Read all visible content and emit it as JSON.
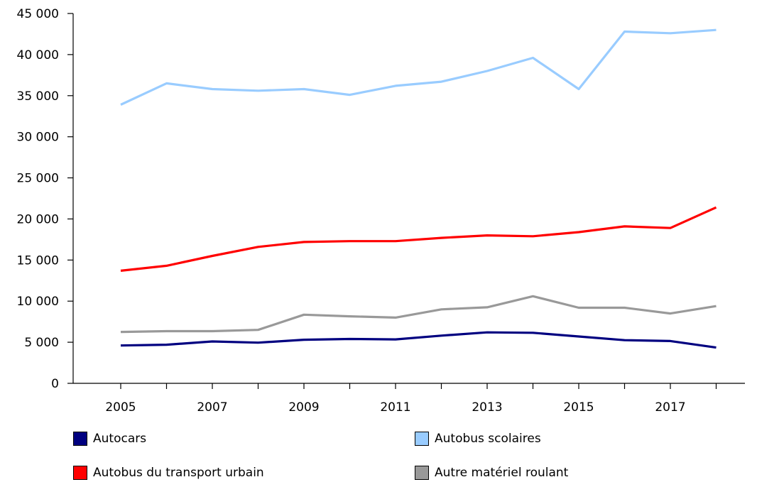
{
  "chart_data": {
    "type": "line",
    "title": "",
    "xlabel": "",
    "ylabel": "",
    "x": [
      2005,
      2006,
      2007,
      2008,
      2009,
      2010,
      2011,
      2012,
      2013,
      2014,
      2015,
      2016,
      2017,
      2018
    ],
    "x_tick_labels": [
      "2005",
      "2007",
      "2009",
      "2011",
      "2013",
      "2015",
      "2017"
    ],
    "x_tick_values": [
      2005,
      2007,
      2009,
      2011,
      2013,
      2015,
      2017
    ],
    "ylim": [
      0,
      45000
    ],
    "y_ticks": [
      0,
      5000,
      10000,
      15000,
      20000,
      25000,
      30000,
      35000,
      40000,
      45000
    ],
    "y_tick_labels": [
      "0",
      "5 000",
      "10 000",
      "15 000",
      "20 000",
      "25 000",
      "30 000",
      "35 000",
      "40 000",
      "45 000"
    ],
    "grid": false,
    "legend_position": "bottom",
    "series": [
      {
        "name": "Autocars",
        "color": "#000080",
        "values": [
          4600,
          4700,
          5100,
          4950,
          5300,
          5400,
          5350,
          5800,
          6200,
          6150,
          5700,
          5250,
          5150,
          4350
        ]
      },
      {
        "name": "Autobus scolaires",
        "color": "#99ccff",
        "values": [
          33900,
          36500,
          35800,
          35600,
          35800,
          35100,
          36200,
          36700,
          38000,
          39600,
          35800,
          42800,
          42600,
          43000
        ]
      },
      {
        "name": "Autobus du transport urbain",
        "color": "#ff0000",
        "values": [
          13700,
          14300,
          15500,
          16600,
          17200,
          17300,
          17300,
          17700,
          18000,
          17900,
          18400,
          19100,
          18900,
          21400
        ]
      },
      {
        "name": "Autre matériel roulant",
        "color": "#999999",
        "values": [
          6250,
          6350,
          6350,
          6500,
          8350,
          8150,
          8000,
          9000,
          9250,
          10600,
          9200,
          9200,
          8500,
          9400
        ]
      }
    ]
  }
}
